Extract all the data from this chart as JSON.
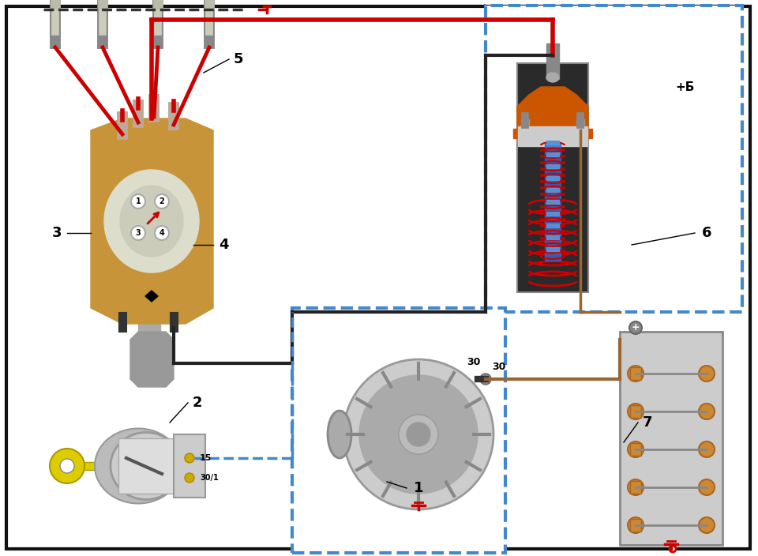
{
  "bg_color": "#ffffff",
  "border_color": "#000000",
  "red_wire": "#cc0000",
  "dark_red_wire": "#8b1a1a",
  "blue_dashed_border": "#4488cc",
  "orange_coil": "#cc5500",
  "dark_bg": "#1a1a1a",
  "blue_core": "#4488cc",
  "yellow_key": "#ddcc00",
  "gold_terminal": "#ccaa00",
  "gray_metal": "#aaaaaa",
  "dark_gray": "#666666",
  "brown_wire": "#996633"
}
